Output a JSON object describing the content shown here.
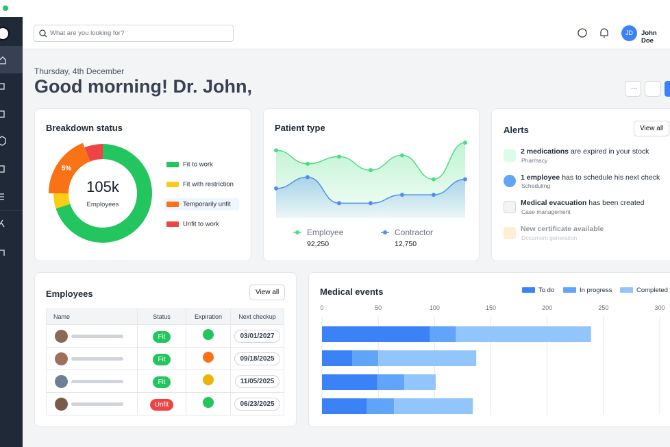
{
  "top_bar": {
    "search_placeholder": "What are you looking for?",
    "user_initials": "JD",
    "user_name": "John Doe"
  },
  "header": {
    "date": "Thursday, 4th December",
    "greeting": "Good morning! Dr. John,"
  },
  "alerts": {
    "title": "Alerts",
    "button": "View all",
    "items": [
      {
        "bold": "2 medications",
        "text": "are expired in your stock",
        "category": "Pharmacy"
      },
      {
        "bold": "1 employee",
        "text": "has to schedule his next check",
        "category": "Scheduling"
      },
      {
        "bold": "Medical evacuation",
        "text": "has been created",
        "category": "Case management"
      },
      {
        "bold": "New certificate available",
        "text": "",
        "category": "Document generation"
      }
    ]
  },
  "employees": {
    "title": "Employees",
    "button": "View all",
    "columns": [
      "Name",
      "Status",
      "Expiration",
      "Next checkup"
    ],
    "rows": [
      {
        "status": "Fit",
        "next_checkup": "03/01/2027"
      },
      {
        "status": "Fit",
        "next_checkup": "09/18/2025"
      },
      {
        "status": "Fit",
        "next_checkup": "11/05/2025"
      },
      {
        "status": "Unfit",
        "next_checkup": "06/23/2025"
      }
    ]
  },
  "chart_data": [
    {
      "type": "donut",
      "title": "Breakdown status",
      "total": {
        "value": 105000,
        "label": "105k"
      },
      "total_caption": "Employees",
      "categories": [
        "Fit to work",
        "Fit with restriction",
        "Temporarily unfit",
        "Unfit to work"
      ],
      "values": [
        70,
        5,
        19,
        6
      ],
      "colors": [
        "#22c55e",
        "#facc15",
        "#f97316",
        "#ef4444"
      ],
      "highlighted": 2,
      "annotation": "5%"
    },
    {
      "type": "area",
      "title": "Patient type",
      "series": [
        {
          "name": "Employee",
          "color": "#4ade80",
          "values": [
            96,
            77,
            87,
            68,
            89,
            55,
            107
          ],
          "total": {
            "value": 92250,
            "label": "92,250"
          }
        },
        {
          "name": "Contractor",
          "color": "#4f8ef0",
          "values": [
            42,
            58,
            21,
            21,
            33,
            33,
            55
          ],
          "total": {
            "value": 12750,
            "label": "12,750"
          }
        }
      ]
    },
    {
      "type": "stacked_bar",
      "title": "Medical events",
      "categories": [
        null,
        null,
        null,
        null
      ],
      "series": [
        {
          "name": "To do",
          "color": "#3b82f6",
          "values": [
            96,
            27,
            49,
            40
          ]
        },
        {
          "name": "In progress",
          "color": "#60a5fa",
          "values": [
            23,
            23,
            24,
            24
          ]
        },
        {
          "name": "Completed",
          "color": "#93c5fd",
          "values": [
            120,
            87,
            28,
            70
          ]
        }
      ],
      "xlim": [
        0,
        300
      ],
      "xticks": [
        0,
        50,
        100,
        150,
        200,
        250,
        300
      ],
      "grid": true
    }
  ]
}
